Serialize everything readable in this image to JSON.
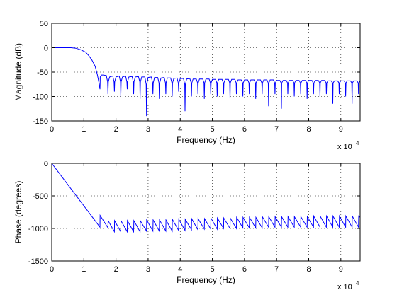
{
  "chart_data": [
    {
      "type": "line",
      "xlabel": "Frequency (Hz)",
      "ylabel": "Magnitude (dB)",
      "x_multiplier_base": "x 10",
      "x_multiplier_exp": "4",
      "xlim": [
        0,
        96000
      ],
      "ylim": [
        -150,
        50
      ],
      "x_ticks": [
        0,
        10000,
        20000,
        30000,
        40000,
        50000,
        60000,
        70000,
        80000,
        90000
      ],
      "x_tick_labels": [
        "0",
        "1",
        "2",
        "3",
        "4",
        "5",
        "6",
        "7",
        "8",
        "9"
      ],
      "y_ticks": [
        50,
        0,
        -50,
        -100,
        -150
      ],
      "y_tick_labels": [
        "50",
        "0",
        "-50",
        "-100",
        "-150"
      ],
      "grid": true,
      "line_color": "#0000ff",
      "series": [
        {
          "x": [
            0,
            6000,
            7500,
            9000,
            10500,
            11500,
            12500,
            13500,
            14200,
            14700,
            15000,
            15050,
            15100,
            15500,
            16000,
            17000,
            17400,
            17500,
            17600,
            18000,
            19000,
            19400,
            19500,
            19600,
            20000,
            21000,
            21400,
            21500,
            21600,
            22000,
            23000,
            23400,
            23500,
            23600,
            24000,
            25000,
            25400,
            25500,
            25600,
            26000,
            27000,
            27400,
            27500,
            27600,
            28000,
            29000,
            29400,
            29500,
            29600,
            30000,
            31000,
            31400,
            31500,
            31600,
            32000,
            33000,
            33400,
            33500,
            33600,
            34000,
            35000,
            35400,
            35500,
            35600,
            36000,
            37000,
            37400,
            37500,
            37600,
            38000,
            39000,
            39400,
            39500,
            39600,
            40000,
            41000,
            41400,
            41500,
            41600,
            42000,
            43000,
            43400,
            43500,
            43600,
            44000,
            45000,
            45400,
            45500,
            45600,
            46000,
            47000,
            47400,
            47500,
            47600,
            48000,
            49000,
            49400,
            49500,
            49600,
            50000,
            51000,
            51400,
            51500,
            51600,
            52000,
            53000,
            53400,
            53500,
            53600,
            54000,
            55000,
            55400,
            55500,
            55600,
            56000,
            57000,
            57400,
            57500,
            57600,
            58000,
            59000,
            59400,
            59500,
            59600,
            60000,
            61000,
            61400,
            61500,
            61600,
            62000,
            63000,
            63400,
            63500,
            63600,
            64000,
            65000,
            65400,
            65500,
            65600,
            66000,
            67000,
            67400,
            67500,
            67600,
            68000,
            69000,
            69400,
            69500,
            69600,
            70000,
            71000,
            71400,
            71500,
            71600,
            72000,
            73000,
            73400,
            73500,
            73600,
            74000,
            75000,
            75400,
            75500,
            75600,
            76000,
            77000,
            77400,
            77500,
            77600,
            78000,
            79000,
            79400,
            79500,
            79600,
            80000,
            81000,
            81400,
            81500,
            81600,
            82000,
            83000,
            83400,
            83500,
            83600,
            84000,
            85000,
            85400,
            85500,
            85600,
            86000,
            87000,
            87400,
            87500,
            87600,
            88000,
            89000,
            89400,
            89500,
            89600,
            90000,
            91000,
            91400,
            91500,
            91600,
            92000,
            93000,
            93400,
            93500,
            93600,
            94000,
            95000,
            95400,
            95500,
            95600,
            96000
          ],
          "y": [
            0,
            0,
            -1,
            -4,
            -9,
            -16,
            -25,
            -38,
            -55,
            -72,
            -85,
            -75,
            -60,
            -56,
            -56,
            -57,
            -70,
            -95,
            -70,
            -60,
            -58,
            -70,
            -90,
            -70,
            -60,
            -58,
            -70,
            -100,
            -70,
            -60,
            -58,
            -70,
            -85,
            -70,
            -60,
            -59,
            -70,
            -95,
            -70,
            -60,
            -59,
            -70,
            -105,
            -70,
            -60,
            -60,
            -75,
            -140,
            -75,
            -61,
            -60,
            -72,
            -95,
            -72,
            -61,
            -61,
            -72,
            -105,
            -72,
            -62,
            -61,
            -72,
            -95,
            -72,
            -62,
            -62,
            -72,
            -100,
            -72,
            -63,
            -62,
            -72,
            -90,
            -72,
            -63,
            -63,
            -75,
            -130,
            -75,
            -64,
            -63,
            -72,
            -100,
            -72,
            -64,
            -64,
            -72,
            -95,
            -72,
            -64,
            -64,
            -72,
            -105,
            -72,
            -64,
            -64,
            -72,
            -95,
            -72,
            -65,
            -65,
            -72,
            -100,
            -72,
            -65,
            -65,
            -72,
            -95,
            -72,
            -65,
            -65,
            -72,
            -105,
            -72,
            -65,
            -65,
            -72,
            -95,
            -72,
            -66,
            -66,
            -72,
            -100,
            -72,
            -66,
            -66,
            -72,
            -95,
            -72,
            -66,
            -66,
            -72,
            -105,
            -72,
            -66,
            -66,
            -72,
            -95,
            -72,
            -66,
            -66,
            -72,
            -120,
            -72,
            -66,
            -66,
            -72,
            -95,
            -72,
            -67,
            -67,
            -72,
            -125,
            -72,
            -67,
            -67,
            -72,
            -95,
            -72,
            -67,
            -67,
            -72,
            -100,
            -72,
            -67,
            -67,
            -72,
            -95,
            -72,
            -67,
            -67,
            -72,
            -105,
            -72,
            -67,
            -67,
            -72,
            -95,
            -72,
            -67,
            -67,
            -72,
            -100,
            -72,
            -67,
            -67,
            -72,
            -95,
            -72,
            -68,
            -68,
            -72,
            -115,
            -72,
            -68,
            -68,
            -72,
            -95,
            -72,
            -68,
            -68,
            -72,
            -100,
            -72,
            -68,
            -68,
            -72,
            -115,
            -72,
            -68,
            -68,
            -72,
            -95,
            -72,
            -68
          ]
        }
      ]
    },
    {
      "type": "line",
      "xlabel": "Frequency (Hz)",
      "ylabel": "Phase (degrees)",
      "x_multiplier_base": "x 10",
      "x_multiplier_exp": "4",
      "xlim": [
        0,
        96000
      ],
      "ylim": [
        -1500,
        0
      ],
      "x_ticks": [
        0,
        10000,
        20000,
        30000,
        40000,
        50000,
        60000,
        70000,
        80000,
        90000
      ],
      "x_tick_labels": [
        "0",
        "1",
        "2",
        "3",
        "4",
        "5",
        "6",
        "7",
        "8",
        "9"
      ],
      "y_ticks": [
        0,
        -500,
        -1000,
        -1500
      ],
      "y_tick_labels": [
        "0",
        "-500",
        "-1000",
        "-1500"
      ],
      "grid": true,
      "line_color": "#0000ff",
      "series": [
        {
          "x": [
            0,
            15000,
            15050,
            17500,
            17550,
            19500,
            19550,
            21500,
            21550,
            23500,
            23550,
            25500,
            25550,
            27500,
            27550,
            29500,
            29550,
            31500,
            31550,
            33500,
            33550,
            35500,
            35550,
            37500,
            37550,
            39500,
            39550,
            41500,
            41550,
            43500,
            43550,
            45500,
            45550,
            47500,
            47550,
            49500,
            49550,
            51500,
            51550,
            53500,
            53550,
            55500,
            55550,
            57500,
            57550,
            59500,
            59550,
            61500,
            61550,
            63500,
            63550,
            65500,
            65550,
            67500,
            67550,
            69500,
            69550,
            71500,
            71550,
            73500,
            73550,
            75500,
            75550,
            77500,
            77550,
            79500,
            79550,
            81500,
            81550,
            83500,
            83550,
            85500,
            85550,
            87500,
            87550,
            89500,
            89550,
            91500,
            91550,
            93500,
            93550,
            95500,
            95550,
            96000
          ],
          "y": [
            0,
            -980,
            -800,
            -990,
            -880,
            -1050,
            -880,
            -1050,
            -880,
            -1050,
            -880,
            -1050,
            -880,
            -1050,
            -880,
            -1040,
            -870,
            -1040,
            -870,
            -1040,
            -870,
            -1040,
            -870,
            -1040,
            -860,
            -1030,
            -860,
            -1030,
            -860,
            -1020,
            -850,
            -1020,
            -850,
            -1010,
            -850,
            -1010,
            -840,
            -1010,
            -840,
            -1000,
            -840,
            -1000,
            -840,
            -1000,
            -830,
            -990,
            -830,
            -990,
            -830,
            -990,
            -830,
            -990,
            -820,
            -980,
            -820,
            -980,
            -820,
            -980,
            -820,
            -980,
            -820,
            -980,
            -820,
            -980,
            -820,
            -980,
            -820,
            -980,
            -810,
            -980,
            -810,
            -980,
            -810,
            -980,
            -810,
            -980,
            -810,
            -980,
            -810,
            -980,
            -810,
            -980,
            -810,
            -830
          ]
        }
      ]
    }
  ]
}
